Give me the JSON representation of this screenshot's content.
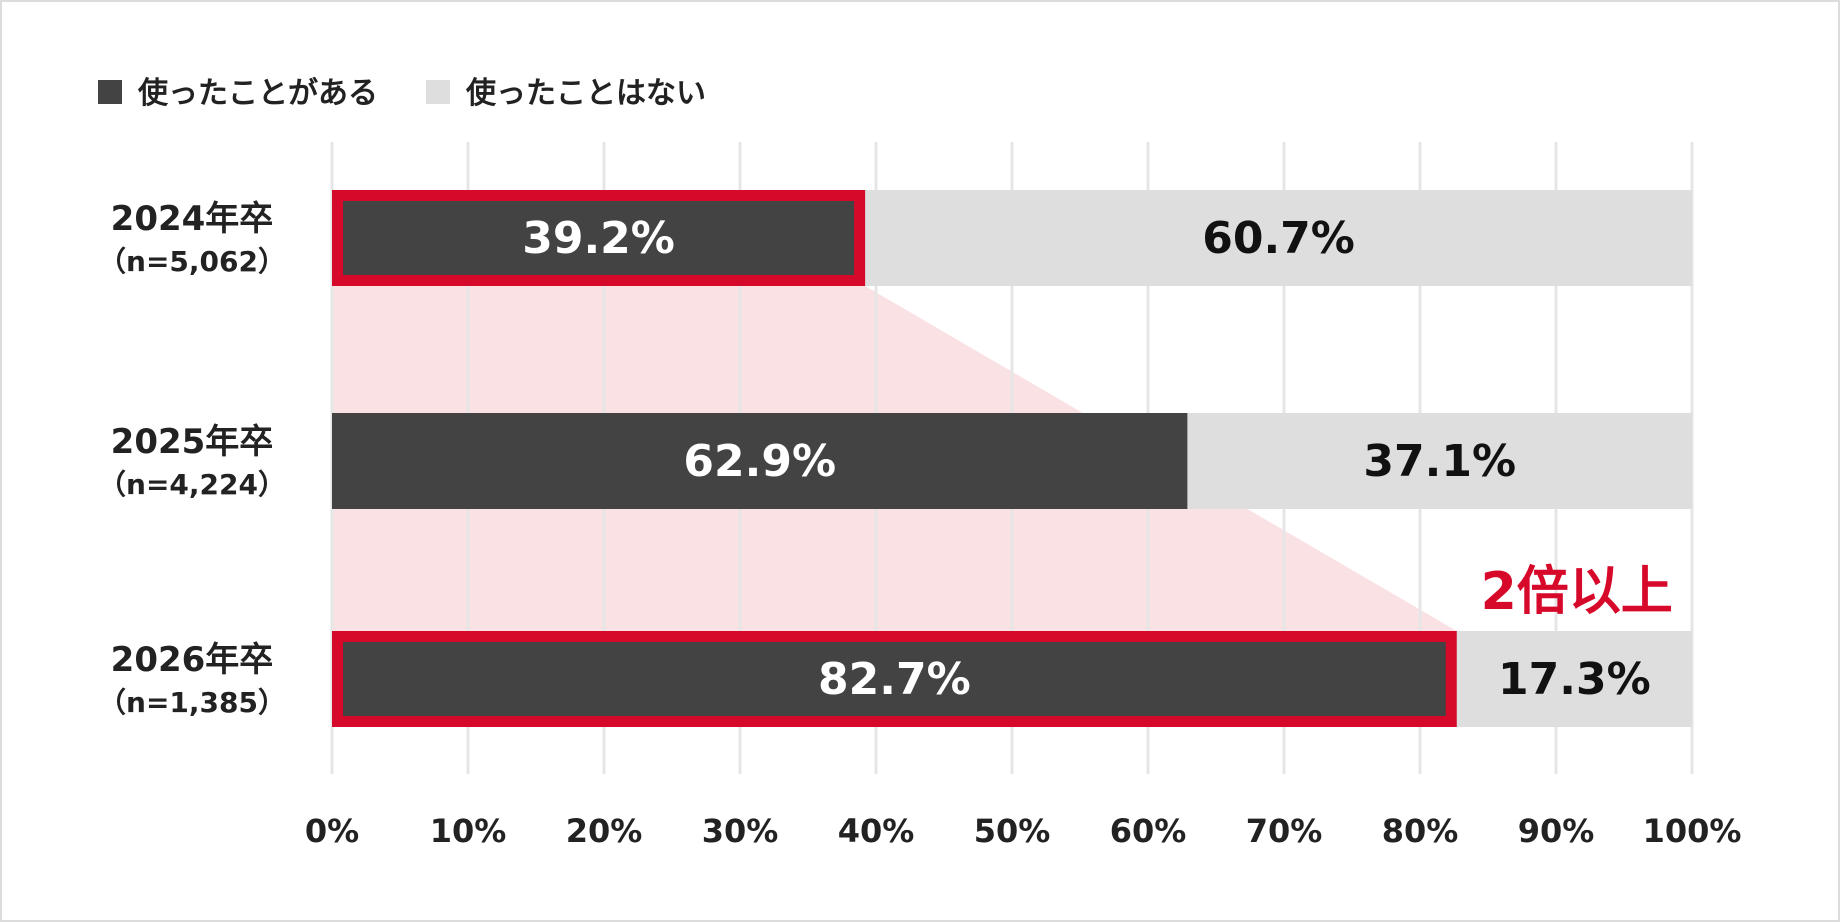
{
  "chart_data": {
    "type": "bar",
    "orientation": "horizontal",
    "stacked": true,
    "title": "",
    "xlabel": "",
    "ylabel": "",
    "xlim": [
      0,
      100
    ],
    "x_ticks": [
      {
        "value": 0,
        "label": "0%"
      },
      {
        "value": 10,
        "label": "10%"
      },
      {
        "value": 20,
        "label": "20%"
      },
      {
        "value": 30,
        "label": "30%"
      },
      {
        "value": 40,
        "label": "40%"
      },
      {
        "value": 50,
        "label": "50%"
      },
      {
        "value": 60,
        "label": "60%"
      },
      {
        "value": 70,
        "label": "70%"
      },
      {
        "value": 80,
        "label": "80%"
      },
      {
        "value": 90,
        "label": "90%"
      },
      {
        "value": 100,
        "label": "100%"
      }
    ],
    "grid": "vertical",
    "legend_position": "top-left",
    "categories": [
      "2024年卒",
      "2025年卒",
      "2026年卒"
    ],
    "category_n": [
      "（n=5,062）",
      "（n=4,224）",
      "（n=1,385）"
    ],
    "series": [
      {
        "name": "使ったことがある",
        "color": "#434343",
        "label_color": "#ffffff",
        "values": [
          39.2,
          62.9,
          82.7
        ],
        "labels": [
          "39.2%",
          "62.9%",
          "82.7%"
        ]
      },
      {
        "name": "使ったことはない",
        "color": "#dedede",
        "label_color": "#111111",
        "values": [
          60.7,
          37.1,
          17.3
        ],
        "labels": [
          "60.7%",
          "37.1%",
          "17.3%"
        ]
      }
    ],
    "highlight": {
      "categories": [
        0,
        2
      ],
      "series": 0,
      "outline_color": "#d7092b",
      "band_color": "#f9e1e4"
    },
    "annotation": {
      "text": "2倍以上",
      "color": "#d7092b"
    }
  }
}
